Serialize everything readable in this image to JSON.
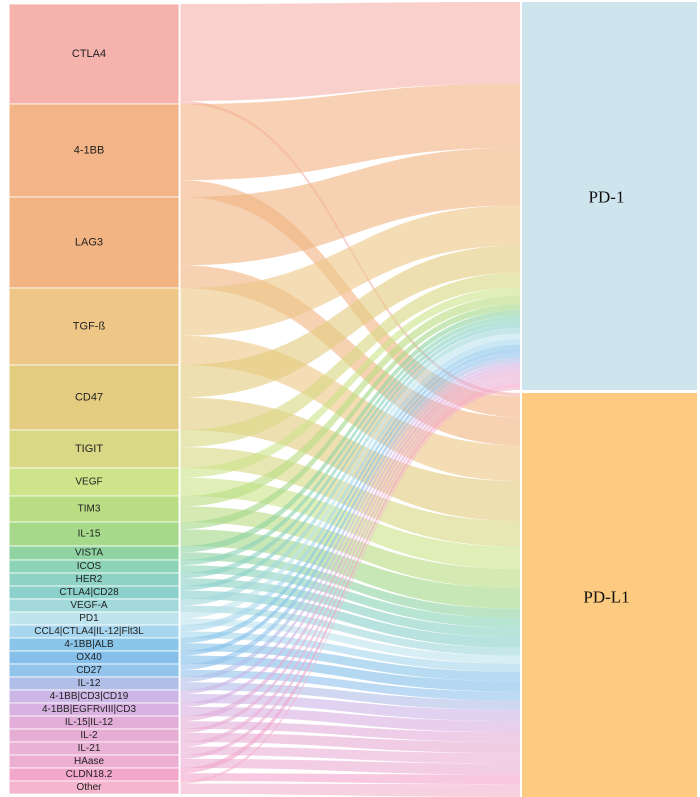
{
  "chart_data": {
    "type": "sankey",
    "title": "",
    "sources": [
      {
        "name": "CTLA4",
        "color": "#f6b3ad"
      },
      {
        "name": "4-1BB",
        "color": "#f3b587"
      },
      {
        "name": "LAG3",
        "color": "#f1b482"
      },
      {
        "name": "TGF-ß",
        "color": "#eec786"
      },
      {
        "name": "CD47",
        "color": "#e3cc80"
      },
      {
        "name": "TIGIT",
        "color": "#d9d885"
      },
      {
        "name": "VEGF",
        "color": "#cde48a"
      },
      {
        "name": "TIM3",
        "color": "#b9dd83"
      },
      {
        "name": "IL-15",
        "color": "#a6d98a"
      },
      {
        "name": "VISTA",
        "color": "#8fd3a2"
      },
      {
        "name": "ICOS",
        "color": "#8dd3b8"
      },
      {
        "name": "HER2",
        "color": "#8dd2c4"
      },
      {
        "name": "CTLA4|CD28",
        "color": "#8cd1cb"
      },
      {
        "name": "VEGF-A",
        "color": "#a3d9db"
      },
      {
        "name": "PD1",
        "color": "#bfe4ee"
      },
      {
        "name": "CCL4|CTLA4|IL-12|Flt3L",
        "color": "#a8d6ee"
      },
      {
        "name": "4-1BB|ALB",
        "color": "#8ac6ea"
      },
      {
        "name": "OX40",
        "color": "#86c0ea"
      },
      {
        "name": "CD27",
        "color": "#93c4ec"
      },
      {
        "name": "IL-12",
        "color": "#b1bfe8"
      },
      {
        "name": "4-1BB|CD3|CD19",
        "color": "#cdb7e6"
      },
      {
        "name": "4-1BB|EGFRvIII|CD3",
        "color": "#d9b2e2"
      },
      {
        "name": "IL-15|IL-12",
        "color": "#e2aed9"
      },
      {
        "name": "IL-2",
        "color": "#e7aed5"
      },
      {
        "name": "IL-21",
        "color": "#eab1d6"
      },
      {
        "name": "HAase",
        "color": "#ecafd3"
      },
      {
        "name": "CLDN18.2",
        "color": "#f2a7cb"
      },
      {
        "name": "Other",
        "color": "#f4b5cd"
      }
    ],
    "targets": [
      {
        "name": "PD-1",
        "color": "#cfe5ee"
      },
      {
        "name": "PD-L1",
        "color": "#fcca80"
      }
    ]
  }
}
